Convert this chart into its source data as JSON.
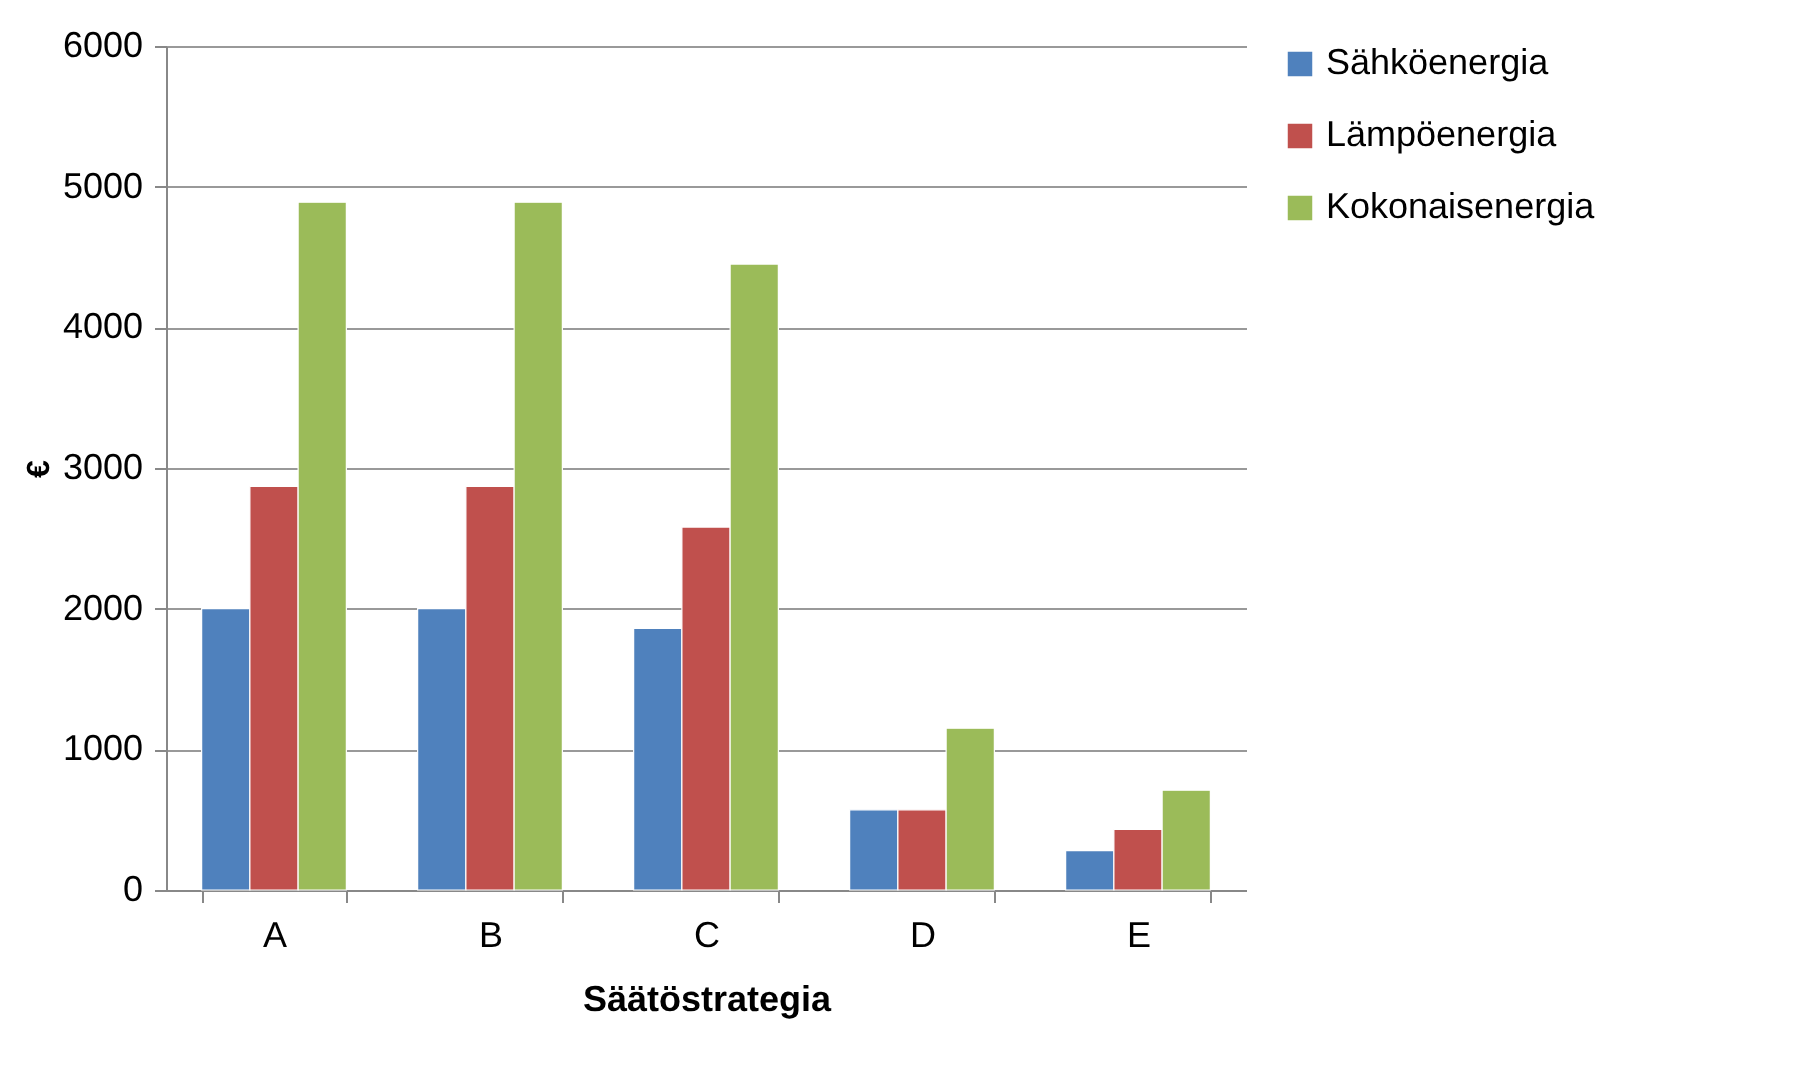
{
  "chart_data": {
    "type": "bar",
    "xlabel": "Säätöstrategia",
    "ylabel": "€",
    "categories": [
      "A",
      "B",
      "C",
      "D",
      "E"
    ],
    "series": [
      {
        "name": "Sähköenergia",
        "color": "#4f81bd",
        "values": [
          2000,
          2000,
          1860,
          570,
          280
        ]
      },
      {
        "name": "Lämpöenergia",
        "color": "#c0504d",
        "values": [
          2870,
          2870,
          2580,
          570,
          430
        ]
      },
      {
        "name": "Kokonaisenergia",
        "color": "#9bbb59",
        "values": [
          4890,
          4890,
          4450,
          1150,
          710
        ]
      }
    ],
    "ylim": [
      0,
      6000
    ],
    "yticks": [
      0,
      1000,
      2000,
      3000,
      4000,
      5000,
      6000
    ],
    "grid": "y",
    "legend": "right"
  }
}
